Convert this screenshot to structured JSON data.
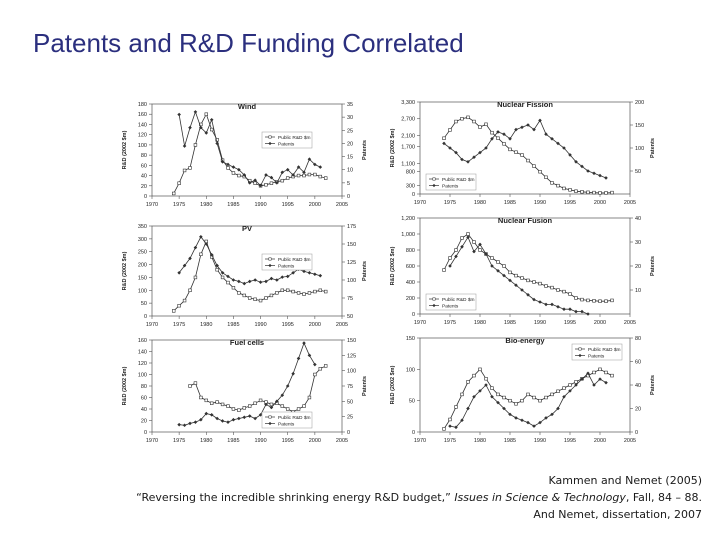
{
  "page": {
    "title": "Patents and R&D Funding Correlated"
  },
  "citation": {
    "line1": "Kammen and Nemet (2005)",
    "line2_a": "“Reversing the incredible shrinking energy R&D budget,” ",
    "line2_journal": "Issues in Science & Technology",
    "line2_b": ", Fall, 84 – 88.",
    "line3": "And Nemet, dissertation, 2007"
  },
  "colors": {
    "series": "#333333",
    "axis": "#555555",
    "title": "#2b2f7e"
  },
  "chart_data": [
    {
      "type": "line",
      "title": "Wind",
      "ylabel": "R&D (2002 $m)",
      "ylabel2": "Patents",
      "xlim": [
        1970,
        2005
      ],
      "xticks": [
        "1970",
        "1975",
        "1980",
        "1985",
        "1990",
        "1995",
        "2000",
        "2005"
      ],
      "ylim": [
        0,
        180
      ],
      "yticks": [
        "0",
        "20",
        "40",
        "60",
        "80",
        "100",
        "120",
        "140",
        "160",
        "180"
      ],
      "ylim2": [
        0,
        35
      ],
      "yticks2": [
        "0",
        "5",
        "10",
        "15",
        "20",
        "25",
        "30",
        "35"
      ],
      "legend_position": "right",
      "series": [
        {
          "name": "Public R&D $m",
          "axis": "left",
          "marker": "open-square",
          "x": [
            1974,
            1975,
            1976,
            1977,
            1978,
            1979,
            1980,
            1981,
            1982,
            1983,
            1984,
            1985,
            1986,
            1987,
            1988,
            1989,
            1990,
            1991,
            1992,
            1993,
            1994,
            1995,
            1996,
            1997,
            1998,
            1999,
            2000,
            2001,
            2002
          ],
          "y": [
            5,
            25,
            50,
            55,
            100,
            140,
            160,
            130,
            110,
            70,
            55,
            45,
            40,
            38,
            30,
            25,
            20,
            22,
            25,
            28,
            30,
            35,
            38,
            40,
            40,
            42,
            42,
            38,
            35
          ]
        },
        {
          "name": "Patents",
          "axis": "right",
          "marker": "filled-diamond",
          "x": [
            1975,
            1976,
            1977,
            1978,
            1979,
            1980,
            1981,
            1982,
            1983,
            1984,
            1985,
            1986,
            1987,
            1988,
            1989,
            1990,
            1991,
            1992,
            1993,
            1994,
            1995,
            1996,
            1997,
            1998,
            1999,
            2000,
            2001
          ],
          "y": [
            31,
            19,
            26,
            32,
            26,
            24,
            29,
            20,
            13,
            12,
            11,
            10,
            8,
            5,
            6,
            4,
            8,
            7,
            5,
            9,
            10,
            8,
            11,
            9,
            14,
            12,
            11
          ]
        }
      ]
    },
    {
      "type": "line",
      "title": "Nuclear Fission",
      "ylabel": "R&D (2002 $m)",
      "ylabel2": "Patents",
      "xlim": [
        1970,
        2005
      ],
      "xticks": [
        "1970",
        "1975",
        "1980",
        "1985",
        "1990",
        "1995",
        "2000",
        "2005"
      ],
      "ylim": [
        0,
        3300
      ],
      "yticks": [
        "0",
        "300",
        "800",
        "1,100",
        "1,700",
        "2,100",
        "2,700",
        "3,300"
      ],
      "ylim2": [
        0,
        200
      ],
      "yticks2": [
        "50",
        "100",
        "150",
        "200"
      ],
      "legend_position": "bottom-left",
      "series": [
        {
          "name": "Public R&D $m",
          "axis": "left",
          "marker": "open-square",
          "x": [
            1974,
            1975,
            1976,
            1977,
            1978,
            1979,
            1980,
            1981,
            1982,
            1983,
            1984,
            1985,
            1986,
            1987,
            1988,
            1989,
            1990,
            1991,
            1992,
            1993,
            1994,
            1995,
            1996,
            1997,
            1998,
            1999,
            2000,
            2001,
            2002
          ],
          "y": [
            2000,
            2300,
            2600,
            2700,
            2750,
            2600,
            2400,
            2500,
            2200,
            2000,
            1800,
            1600,
            1500,
            1400,
            1200,
            1000,
            800,
            600,
            400,
            300,
            200,
            150,
            100,
            80,
            60,
            50,
            40,
            40,
            50
          ]
        },
        {
          "name": "Patents",
          "axis": "right",
          "marker": "filled-diamond",
          "x": [
            1974,
            1975,
            1976,
            1977,
            1978,
            1979,
            1980,
            1981,
            1982,
            1983,
            1984,
            1985,
            1986,
            1987,
            1988,
            1989,
            1990,
            1991,
            1992,
            1993,
            1994,
            1995,
            1996,
            1997,
            1998,
            1999,
            2000,
            2001
          ],
          "y": [
            110,
            100,
            90,
            75,
            70,
            80,
            90,
            100,
            120,
            135,
            130,
            120,
            140,
            145,
            150,
            140,
            160,
            130,
            120,
            110,
            100,
            85,
            70,
            60,
            50,
            45,
            40,
            35
          ]
        }
      ]
    },
    {
      "type": "line",
      "title": "PV",
      "ylabel": "R&D (2002 $m)",
      "ylabel2": "Patents",
      "xlim": [
        1970,
        2005
      ],
      "xticks": [
        "1970",
        "1975",
        "1980",
        "1985",
        "1990",
        "1995",
        "2000",
        "2005"
      ],
      "ylim": [
        0,
        350
      ],
      "yticks": [
        "0",
        "50",
        "100",
        "150",
        "200",
        "250",
        "300",
        "350"
      ],
      "ylim2": [
        50,
        175
      ],
      "yticks2": [
        "50",
        "75",
        "100",
        "125",
        "150",
        "175"
      ],
      "legend_position": "right",
      "series": [
        {
          "name": "Public R&D $m",
          "axis": "left",
          "marker": "open-square",
          "x": [
            1974,
            1975,
            1976,
            1977,
            1978,
            1979,
            1980,
            1981,
            1982,
            1983,
            1984,
            1985,
            1986,
            1987,
            1988,
            1989,
            1990,
            1991,
            1992,
            1993,
            1994,
            1995,
            1996,
            1997,
            1998,
            1999,
            2000,
            2001,
            2002
          ],
          "y": [
            20,
            40,
            60,
            100,
            150,
            240,
            290,
            230,
            180,
            150,
            130,
            110,
            90,
            80,
            70,
            65,
            60,
            70,
            80,
            90,
            100,
            100,
            95,
            90,
            85,
            90,
            95,
            100,
            95
          ]
        },
        {
          "name": "Patents",
          "axis": "right",
          "marker": "filled-diamond",
          "x": [
            1975,
            1976,
            1977,
            1978,
            1979,
            1980,
            1981,
            1982,
            1983,
            1984,
            1985,
            1986,
            1987,
            1988,
            1989,
            1990,
            1991,
            1992,
            1993,
            1994,
            1995,
            1996,
            1997,
            1998,
            1999,
            2000,
            2001
          ],
          "y": [
            110,
            120,
            130,
            145,
            160,
            150,
            135,
            120,
            110,
            105,
            100,
            98,
            95,
            98,
            100,
            97,
            98,
            102,
            100,
            104,
            105,
            110,
            115,
            112,
            110,
            108,
            106
          ]
        }
      ]
    },
    {
      "type": "line",
      "title": "Nuclear Fusion",
      "ylabel": "R&D (2002 $m)",
      "ylabel2": "Patents",
      "xlim": [
        1970,
        2005
      ],
      "xticks": [
        "1970",
        "1975",
        "1980",
        "1985",
        "1990",
        "1995",
        "2000",
        "2005"
      ],
      "ylim": [
        0,
        1200
      ],
      "yticks": [
        "0",
        "200",
        "400",
        "600",
        "800",
        "1,000",
        "1,200"
      ],
      "ylim2": [
        0,
        40
      ],
      "yticks2": [
        "10",
        "20",
        "30",
        "40"
      ],
      "legend_position": "bottom-left",
      "series": [
        {
          "name": "Public R&D $m",
          "axis": "left",
          "marker": "open-square",
          "x": [
            1974,
            1975,
            1976,
            1977,
            1978,
            1979,
            1980,
            1981,
            1982,
            1983,
            1984,
            1985,
            1986,
            1987,
            1988,
            1989,
            1990,
            1991,
            1992,
            1993,
            1994,
            1995,
            1996,
            1997,
            1998,
            1999,
            2000,
            2001,
            2002
          ],
          "y": [
            550,
            700,
            800,
            950,
            1000,
            900,
            800,
            750,
            700,
            650,
            600,
            520,
            480,
            450,
            420,
            400,
            380,
            350,
            330,
            300,
            280,
            250,
            200,
            180,
            170,
            165,
            160,
            160,
            170
          ]
        },
        {
          "name": "Patents",
          "axis": "right",
          "marker": "filled-diamond",
          "x": [
            1975,
            1976,
            1977,
            1978,
            1979,
            1980,
            1981,
            1982,
            1983,
            1984,
            1985,
            1986,
            1987,
            1988,
            1989,
            1990,
            1991,
            1992,
            1993,
            1994,
            1995,
            1996,
            1997,
            1998
          ],
          "y": [
            20,
            24,
            28,
            32,
            26,
            29,
            25,
            20,
            18,
            16,
            14,
            12,
            10,
            8,
            6,
            5,
            4,
            4,
            3,
            2,
            2,
            1,
            1,
            0
          ]
        }
      ]
    },
    {
      "type": "line",
      "title": "Fuel cells",
      "ylabel": "R&D (2002 $m)",
      "ylabel2": "Patents",
      "xlim": [
        1970,
        2005
      ],
      "xticks": [
        "1970",
        "1975",
        "1980",
        "1985",
        "1990",
        "1995",
        "2000",
        "2005"
      ],
      "ylim": [
        0,
        160
      ],
      "yticks": [
        "0",
        "20",
        "40",
        "60",
        "80",
        "100",
        "120",
        "140",
        "160"
      ],
      "ylim2": [
        0,
        150
      ],
      "yticks2": [
        "0",
        "25",
        "50",
        "75",
        "100",
        "125",
        "150"
      ],
      "legend_position": "bottom-right",
      "series": [
        {
          "name": "Public R&D $m",
          "axis": "left",
          "marker": "open-square",
          "x": [
            1977,
            1978,
            1979,
            1980,
            1981,
            1982,
            1983,
            1984,
            1985,
            1986,
            1987,
            1988,
            1989,
            1990,
            1991,
            1992,
            1993,
            1994,
            1995,
            1996,
            1997,
            1998,
            1999,
            2000,
            2001,
            2002
          ],
          "y": [
            80,
            85,
            60,
            55,
            50,
            52,
            48,
            45,
            40,
            38,
            42,
            45,
            50,
            55,
            52,
            48,
            50,
            45,
            40,
            35,
            40,
            45,
            60,
            100,
            110,
            115
          ]
        },
        {
          "name": "Patents",
          "axis": "right",
          "marker": "filled-diamond",
          "x": [
            1975,
            1976,
            1977,
            1978,
            1979,
            1980,
            1981,
            1982,
            1983,
            1984,
            1985,
            1986,
            1987,
            1988,
            1989,
            1990,
            1991,
            1992,
            1993,
            1994,
            1995,
            1996,
            1997,
            1998,
            1999,
            2000
          ],
          "y": [
            12,
            11,
            14,
            16,
            20,
            30,
            28,
            22,
            18,
            16,
            20,
            22,
            24,
            26,
            22,
            28,
            45,
            40,
            50,
            60,
            75,
            95,
            120,
            145,
            125,
            110
          ]
        }
      ]
    },
    {
      "type": "line",
      "title": "Bio-energy",
      "ylabel": "R&D (2002 $m)",
      "ylabel2": "Patents",
      "xlim": [
        1970,
        2005
      ],
      "xticks": [
        "1970",
        "1975",
        "1980",
        "1985",
        "1990",
        "1995",
        "2000",
        "2005"
      ],
      "ylim": [
        0,
        150
      ],
      "yticks": [
        "0",
        "50",
        "100",
        "150"
      ],
      "ylim2": [
        0,
        80
      ],
      "yticks2": [
        "0",
        "20",
        "40",
        "60",
        "80"
      ],
      "legend_position": "top-right",
      "series": [
        {
          "name": "Public R&D $m",
          "axis": "left",
          "marker": "open-square",
          "x": [
            1974,
            1975,
            1976,
            1977,
            1978,
            1979,
            1980,
            1981,
            1982,
            1983,
            1984,
            1985,
            1986,
            1987,
            1988,
            1989,
            1990,
            1991,
            1992,
            1993,
            1994,
            1995,
            1996,
            1997,
            1998,
            1999,
            2000,
            2001,
            2002
          ],
          "y": [
            5,
            20,
            40,
            60,
            80,
            90,
            100,
            85,
            70,
            60,
            55,
            50,
            45,
            50,
            60,
            55,
            50,
            55,
            60,
            65,
            70,
            75,
            80,
            85,
            90,
            95,
            100,
            95,
            90
          ]
        },
        {
          "name": "Patents",
          "axis": "right",
          "marker": "filled-diamond",
          "x": [
            1975,
            1976,
            1977,
            1978,
            1979,
            1980,
            1981,
            1982,
            1983,
            1984,
            1985,
            1986,
            1987,
            1988,
            1989,
            1990,
            1991,
            1992,
            1993,
            1994,
            1995,
            1996,
            1997,
            1998,
            1999,
            2000,
            2001
          ],
          "y": [
            5,
            4,
            10,
            20,
            30,
            35,
            40,
            30,
            25,
            20,
            15,
            12,
            10,
            8,
            5,
            8,
            12,
            15,
            20,
            30,
            35,
            40,
            45,
            50,
            40,
            45,
            42
          ]
        }
      ]
    }
  ]
}
